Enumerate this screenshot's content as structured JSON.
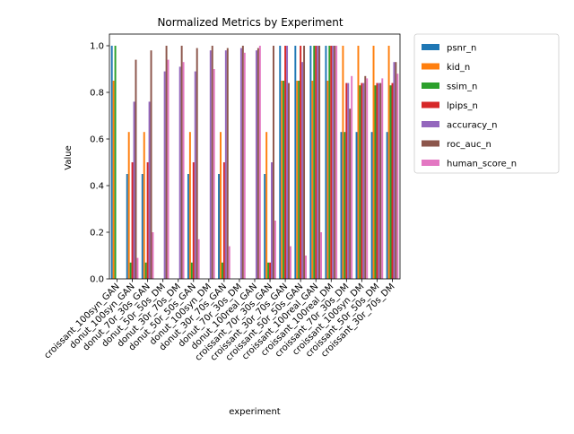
{
  "chart_data": {
    "type": "bar",
    "title": "Normalized Metrics by Experiment",
    "xlabel": "experiment",
    "ylabel": "Value",
    "ylim": [
      0,
      1.05
    ],
    "yticks": [
      "0.0",
      "0.2",
      "0.4",
      "0.6",
      "0.8",
      "1.0"
    ],
    "legend_position": "outside-right",
    "categories": [
      "croissant_100syn_GAN",
      "donut_100syn_GAN",
      "donut_70r_30s_GAN",
      "donut_50r_50s_DM",
      "donut_30r_70s_DM",
      "donut_50r_50s_GAN",
      "donut_100syn_DM",
      "donut_30r_70s_GAN",
      "donut_70r_30s_DM",
      "donut_100real_GAN",
      "croissant_70r_30s_GAN",
      "croissant_30r_70s_GAN",
      "croissant_50r_50s_GAN",
      "croissant_100real_GAN",
      "croissant_100real_DM",
      "croissant_70r_30s_DM",
      "croissant_100syn_DM",
      "croissant_50r_50s_DM",
      "croissant_30r_70s_DM"
    ],
    "series": [
      {
        "name": "psnr_n",
        "color": "#1f77b4",
        "values": [
          1.0,
          0.45,
          0.45,
          0.0,
          0.0,
          0.45,
          0.0,
          0.45,
          0.0,
          0.0,
          0.45,
          1.0,
          1.0,
          1.0,
          1.0,
          0.63,
          0.63,
          0.63,
          0.63
        ]
      },
      {
        "name": "kid_n",
        "color": "#ff7f0e",
        "values": [
          0.85,
          0.63,
          0.63,
          0.0,
          0.0,
          0.63,
          0.0,
          0.63,
          0.0,
          0.0,
          0.63,
          0.85,
          0.85,
          0.85,
          0.85,
          1.0,
          1.0,
          1.0,
          1.0
        ]
      },
      {
        "name": "ssim_n",
        "color": "#2ca02c",
        "values": [
          1.0,
          0.07,
          0.07,
          0.0,
          0.0,
          0.07,
          0.0,
          0.07,
          0.0,
          0.0,
          0.07,
          0.85,
          0.85,
          1.0,
          1.0,
          0.63,
          0.83,
          0.83,
          0.83
        ]
      },
      {
        "name": "lpips_n",
        "color": "#d62728",
        "values": [
          0.0,
          0.5,
          0.5,
          0.0,
          0.0,
          0.5,
          0.0,
          0.5,
          0.0,
          0.0,
          0.07,
          1.0,
          1.0,
          1.0,
          1.0,
          0.84,
          0.84,
          0.84,
          0.84
        ]
      },
      {
        "name": "accuracy_n",
        "color": "#9467bd",
        "values": [
          0.0,
          0.76,
          0.76,
          0.89,
          0.91,
          0.89,
          0.98,
          0.98,
          0.99,
          0.98,
          0.5,
          1.0,
          0.93,
          1.0,
          1.0,
          0.84,
          0.84,
          0.84,
          0.93
        ]
      },
      {
        "name": "roc_auc_n",
        "color": "#8c564b",
        "values": [
          0.0,
          0.94,
          0.98,
          1.0,
          1.0,
          0.99,
          1.0,
          0.99,
          1.0,
          0.99,
          1.0,
          0.84,
          1.0,
          1.0,
          1.0,
          0.73,
          0.87,
          0.84,
          0.93
        ]
      },
      {
        "name": "human_score_n",
        "color": "#e377c2",
        "values": [
          0.0,
          0.09,
          0.2,
          0.94,
          0.93,
          0.17,
          0.9,
          0.14,
          0.97,
          1.0,
          0.25,
          0.14,
          0.1,
          0.2,
          1.0,
          0.87,
          0.86,
          0.86,
          0.88
        ]
      }
    ]
  }
}
